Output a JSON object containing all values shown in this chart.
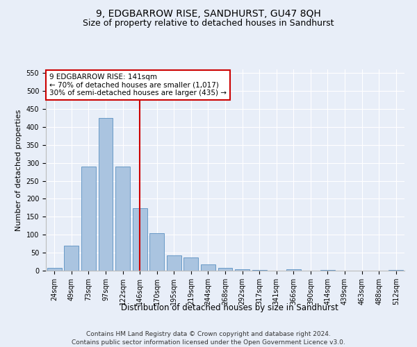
{
  "title": "9, EDGBARROW RISE, SANDHURST, GU47 8QH",
  "subtitle": "Size of property relative to detached houses in Sandhurst",
  "xlabel": "Distribution of detached houses by size in Sandhurst",
  "ylabel": "Number of detached properties",
  "categories": [
    "24sqm",
    "49sqm",
    "73sqm",
    "97sqm",
    "122sqm",
    "146sqm",
    "170sqm",
    "195sqm",
    "219sqm",
    "244sqm",
    "268sqm",
    "292sqm",
    "317sqm",
    "341sqm",
    "366sqm",
    "390sqm",
    "414sqm",
    "439sqm",
    "463sqm",
    "488sqm",
    "512sqm"
  ],
  "values": [
    7,
    70,
    290,
    425,
    290,
    173,
    105,
    43,
    37,
    17,
    8,
    3,
    2,
    0,
    3,
    0,
    2,
    0,
    0,
    0,
    2
  ],
  "bar_color": "#aac4e0",
  "bar_edge_color": "#5a90c0",
  "vline_x_index": 5,
  "vline_color": "#cc0000",
  "annotation_line1": "9 EDGBARROW RISE: 141sqm",
  "annotation_line2": "← 70% of detached houses are smaller (1,017)",
  "annotation_line3": "30% of semi-detached houses are larger (435) →",
  "annotation_box_color": "#ffffff",
  "annotation_box_edge_color": "#cc0000",
  "ylim": [
    0,
    560
  ],
  "yticks": [
    0,
    50,
    100,
    150,
    200,
    250,
    300,
    350,
    400,
    450,
    500,
    550
  ],
  "background_color": "#e8eef8",
  "plot_bg_color": "#e8eef8",
  "footer_line1": "Contains HM Land Registry data © Crown copyright and database right 2024.",
  "footer_line2": "Contains public sector information licensed under the Open Government Licence v3.0.",
  "title_fontsize": 10,
  "subtitle_fontsize": 9,
  "xlabel_fontsize": 8.5,
  "ylabel_fontsize": 8,
  "tick_fontsize": 7,
  "footer_fontsize": 6.5,
  "annotation_fontsize": 7.5
}
